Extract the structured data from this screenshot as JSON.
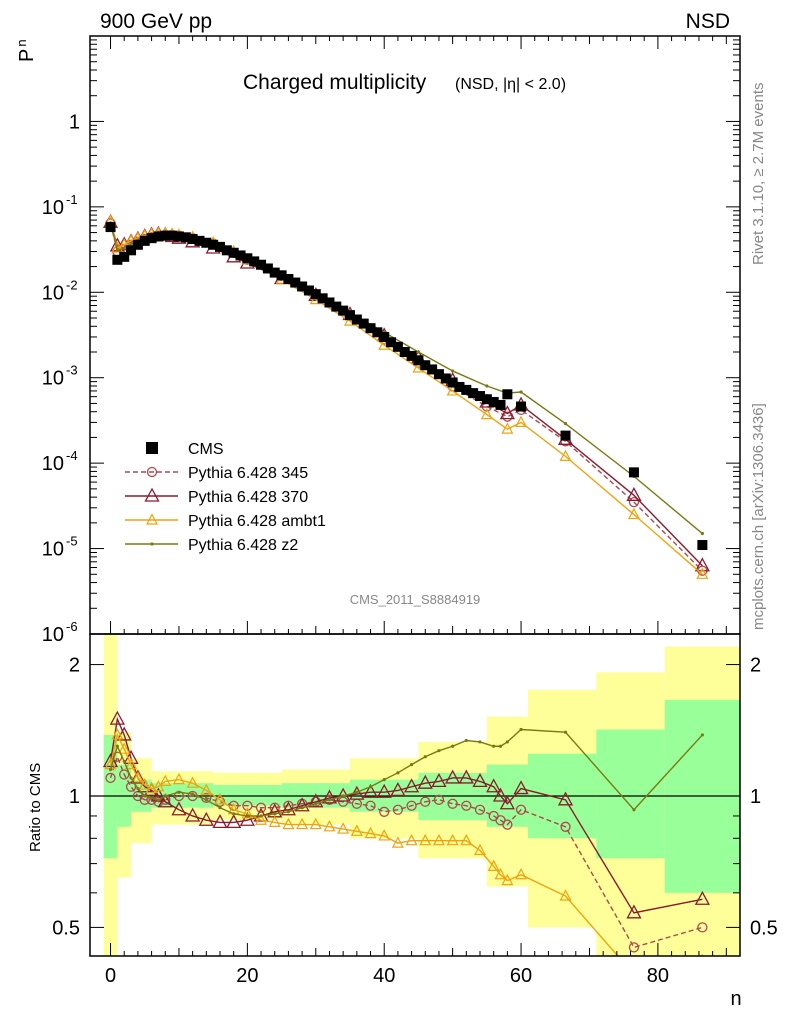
{
  "header": {
    "left": "900 GeV pp",
    "right": "NSD"
  },
  "title": {
    "main": "Charged multiplicity",
    "sub": "(NSD, |η| < 2.0)"
  },
  "side_text": {
    "top": "Rivet 3.1.10, ≥ 2.7M events",
    "bottom": "mcplots.cern.ch [arXiv:1306.3436]"
  },
  "analysis_label": "CMS_2011_S8884919",
  "axes": {
    "y_top_label": "P",
    "y_top_label_sub": "n",
    "y_bottom_label": "Ratio to CMS",
    "x_label": "n",
    "x_ticks": [
      "0",
      "20",
      "40",
      "60",
      "80"
    ],
    "y_top_ticks": [
      "10",
      "10",
      "10",
      "10",
      "10",
      "10",
      "1"
    ],
    "y_top_tick_exps": [
      "-6",
      "-5",
      "-4",
      "-3",
      "-2",
      "-1",
      ""
    ],
    "y_bottom_ticks": [
      "0.5",
      "1",
      "2"
    ]
  },
  "legend": [
    {
      "label": "CMS",
      "color": "#000000"
    },
    {
      "label": "Pythia 6.428 345",
      "color": "#b0474f"
    },
    {
      "label": "Pythia 6.428 370",
      "color": "#8b1a2e"
    },
    {
      "label": "Pythia 6.428 ambt1",
      "color": "#f0a30a"
    },
    {
      "label": "Pythia 6.428 z2",
      "color": "#7a7a12"
    }
  ],
  "chart_data": {
    "type": "scatter",
    "x_range": [
      -3,
      92
    ],
    "top_panel": {
      "yscale": "log",
      "ylim": [
        1e-06,
        10
      ]
    },
    "bottom_panel": {
      "yscale": "log",
      "ylim": [
        0.43,
        2.35
      ],
      "reference": 1
    },
    "data": {
      "name": "CMS",
      "x": [
        0,
        1,
        2,
        3,
        4,
        5,
        6,
        7,
        8,
        9,
        10,
        11,
        12,
        13,
        14,
        15,
        16,
        17,
        18,
        19,
        20,
        21,
        22,
        23,
        24,
        25,
        26,
        27,
        28,
        29,
        30,
        31,
        32,
        33,
        34,
        35,
        36,
        37,
        38,
        39,
        40,
        41,
        42,
        43,
        44,
        45,
        46,
        47,
        48,
        49,
        50,
        51,
        52,
        53,
        54,
        55,
        56,
        57,
        58,
        60,
        66.5,
        76.5,
        86.5
      ],
      "y": [
        0.058,
        0.024,
        0.026,
        0.031,
        0.036,
        0.04,
        0.043,
        0.045,
        0.046,
        0.046,
        0.045,
        0.044,
        0.042,
        0.04,
        0.038,
        0.036,
        0.034,
        0.031,
        0.029,
        0.027,
        0.025,
        0.023,
        0.021,
        0.019,
        0.017,
        0.0158,
        0.0143,
        0.013,
        0.0117,
        0.0105,
        0.0095,
        0.0085,
        0.0076,
        0.0068,
        0.0061,
        0.0054,
        0.0048,
        0.0043,
        0.0038,
        0.0034,
        0.003,
        0.0026,
        0.0023,
        0.002,
        0.0018,
        0.0016,
        0.0014,
        0.00125,
        0.0011,
        0.00098,
        0.00088,
        0.00078,
        0.00072,
        0.00066,
        0.00061,
        0.00056,
        0.00052,
        0.00048,
        0.00064,
        0.00046,
        0.00021,
        7.8e-05,
        1.1e-05
      ]
    },
    "series": [
      {
        "name": "Pythia 6.428 345",
        "marker": "open-circle",
        "line": "dashed",
        "x": [
          0,
          1,
          2,
          3,
          4,
          5,
          6,
          7,
          8,
          9,
          10,
          12,
          15,
          18,
          20,
          25,
          30,
          35,
          40,
          45,
          50,
          55,
          58,
          60,
          66.5,
          76.5,
          86.5
        ],
        "y": [
          0.064,
          0.03,
          0.032,
          0.036,
          0.039,
          0.042,
          0.044,
          0.046,
          0.047,
          0.047,
          0.046,
          0.043,
          0.037,
          0.029,
          0.024,
          0.0155,
          0.0093,
          0.0053,
          0.0028,
          0.0015,
          0.00079,
          0.00046,
          0.00035,
          0.00042,
          0.00018,
          3.5e-05,
          5.5e-06
        ]
      },
      {
        "name": "Pythia 6.428 370",
        "marker": "open-triangle",
        "line": "solid",
        "x": [
          0,
          1,
          2,
          3,
          4,
          5,
          6,
          7,
          8,
          9,
          10,
          12,
          15,
          18,
          20,
          25,
          30,
          35,
          40,
          45,
          50,
          55,
          58,
          60,
          66.5,
          76.5,
          86.5
        ],
        "y": [
          0.066,
          0.035,
          0.036,
          0.039,
          0.042,
          0.045,
          0.047,
          0.048,
          0.047,
          0.045,
          0.043,
          0.039,
          0.033,
          0.026,
          0.022,
          0.0145,
          0.0092,
          0.0055,
          0.0031,
          0.0017,
          0.00093,
          0.00052,
          0.00038,
          0.00048,
          0.00019,
          4.2e-05,
          6.3e-06
        ]
      },
      {
        "name": "Pythia 6.428 ambt1",
        "marker": "open-triangle-small",
        "line": "solid",
        "x": [
          0,
          1,
          2,
          3,
          4,
          5,
          6,
          7,
          8,
          9,
          10,
          12,
          15,
          18,
          20,
          25,
          30,
          35,
          40,
          45,
          50,
          55,
          58,
          60,
          66.5,
          76.5,
          86.5
        ],
        "y": [
          0.068,
          0.033,
          0.036,
          0.04,
          0.043,
          0.046,
          0.048,
          0.049,
          0.049,
          0.048,
          0.047,
          0.044,
          0.038,
          0.03,
          0.024,
          0.014,
          0.0082,
          0.0046,
          0.0024,
          0.0013,
          0.0007,
          0.00037,
          0.00025,
          0.0003,
          0.00012,
          2.5e-05,
          5e-06
        ]
      },
      {
        "name": "Pythia 6.428 z2",
        "marker": "dot",
        "line": "solid",
        "x": [
          0,
          1,
          2,
          3,
          4,
          5,
          6,
          7,
          8,
          9,
          10,
          12,
          15,
          18,
          20,
          25,
          30,
          35,
          40,
          45,
          50,
          55,
          58,
          60,
          66.5,
          76.5,
          86.5
        ],
        "y": [
          0.065,
          0.031,
          0.033,
          0.037,
          0.04,
          0.043,
          0.045,
          0.047,
          0.047,
          0.046,
          0.045,
          0.042,
          0.036,
          0.029,
          0.024,
          0.0155,
          0.0095,
          0.0058,
          0.0034,
          0.002,
          0.0012,
          0.0008,
          0.00066,
          0.00068,
          0.00029,
          7e-05,
          1.5e-05
        ]
      }
    ],
    "ratios": [
      {
        "name": "Pythia 6.428 345",
        "x": [
          0,
          1,
          2,
          3,
          4,
          5,
          6,
          7,
          8,
          10,
          12,
          14,
          16,
          18,
          20,
          22,
          24,
          26,
          28,
          30,
          32,
          34,
          36,
          38,
          40,
          42,
          44,
          46,
          48,
          50,
          52,
          54,
          56,
          57,
          58,
          60,
          66.5,
          76.5,
          86.5
        ],
        "y": [
          1.1,
          1.23,
          1.12,
          1.05,
          1.0,
          0.98,
          0.98,
          0.97,
          0.98,
          1.0,
          1.0,
          0.99,
          0.97,
          0.95,
          0.95,
          0.94,
          0.94,
          0.95,
          0.96,
          0.97,
          0.98,
          0.97,
          0.96,
          0.95,
          0.92,
          0.93,
          0.95,
          0.97,
          0.98,
          0.96,
          0.95,
          0.93,
          0.9,
          0.88,
          0.86,
          0.93,
          0.85,
          0.45,
          0.5
        ]
      },
      {
        "name": "Pythia 6.428 370",
        "x": [
          0,
          1,
          2,
          3,
          4,
          5,
          6,
          7,
          8,
          10,
          12,
          14,
          16,
          18,
          20,
          22,
          24,
          26,
          28,
          30,
          32,
          34,
          36,
          38,
          40,
          42,
          44,
          46,
          48,
          50,
          52,
          54,
          56,
          57,
          58,
          60,
          66.5,
          76.5,
          86.5
        ],
        "y": [
          1.2,
          1.5,
          1.38,
          1.22,
          1.1,
          1.05,
          1.03,
          1.0,
          0.97,
          0.93,
          0.9,
          0.88,
          0.87,
          0.87,
          0.88,
          0.9,
          0.92,
          0.93,
          0.95,
          0.97,
          0.99,
          1.0,
          1.01,
          1.02,
          1.02,
          1.03,
          1.05,
          1.07,
          1.08,
          1.1,
          1.1,
          1.08,
          1.05,
          1.0,
          0.96,
          1.04,
          0.98,
          0.54,
          0.58
        ]
      },
      {
        "name": "Pythia 6.428 ambt1",
        "x": [
          0,
          1,
          2,
          3,
          4,
          5,
          6,
          7,
          8,
          10,
          12,
          14,
          16,
          18,
          20,
          22,
          24,
          26,
          28,
          30,
          32,
          34,
          36,
          38,
          40,
          42,
          44,
          46,
          48,
          50,
          52,
          54,
          56,
          57,
          58,
          60,
          66.5,
          76.5,
          86.5
        ],
        "y": [
          1.18,
          1.38,
          1.28,
          1.18,
          1.1,
          1.06,
          1.04,
          1.05,
          1.08,
          1.09,
          1.07,
          1.03,
          0.98,
          0.93,
          0.91,
          0.88,
          0.87,
          0.86,
          0.86,
          0.86,
          0.85,
          0.84,
          0.83,
          0.82,
          0.81,
          0.78,
          0.79,
          0.79,
          0.79,
          0.79,
          0.79,
          0.75,
          0.69,
          0.66,
          0.64,
          0.66,
          0.59,
          0.39,
          0.42
        ]
      },
      {
        "name": "Pythia 6.428 z2",
        "x": [
          0,
          1,
          2,
          3,
          4,
          5,
          6,
          7,
          8,
          10,
          12,
          14,
          16,
          18,
          20,
          22,
          24,
          26,
          28,
          30,
          32,
          34,
          36,
          38,
          40,
          42,
          44,
          46,
          48,
          50,
          52,
          54,
          56,
          57,
          58,
          60,
          66.5,
          76.5,
          86.5
        ],
        "y": [
          1.15,
          1.3,
          1.2,
          1.1,
          1.04,
          1.0,
          0.99,
          0.98,
          1.0,
          1.02,
          1.01,
          0.98,
          0.94,
          0.91,
          0.9,
          0.9,
          0.91,
          0.92,
          0.94,
          0.96,
          0.98,
          1.0,
          1.02,
          1.05,
          1.09,
          1.13,
          1.18,
          1.23,
          1.27,
          1.3,
          1.34,
          1.33,
          1.3,
          1.3,
          1.33,
          1.42,
          1.4,
          0.93,
          1.38
        ]
      }
    ],
    "bands": {
      "inner": [
        [
          -1,
          1,
          0.72,
          1.38
        ],
        [
          1,
          3,
          0.85,
          1.18
        ],
        [
          3,
          6,
          0.92,
          1.09
        ],
        [
          6,
          15,
          0.94,
          1.07
        ],
        [
          15,
          25,
          0.95,
          1.06
        ],
        [
          25,
          35,
          0.94,
          1.07
        ],
        [
          35,
          45,
          0.92,
          1.09
        ],
        [
          45,
          55,
          0.88,
          1.13
        ],
        [
          55,
          61,
          0.85,
          1.18
        ],
        [
          61,
          71,
          0.8,
          1.25
        ],
        [
          71,
          81,
          0.72,
          1.42
        ],
        [
          81,
          92,
          0.6,
          1.66
        ]
      ],
      "outer": [
        [
          -1,
          1,
          0.43,
          2.35
        ],
        [
          1,
          3,
          0.65,
          1.4
        ],
        [
          3,
          6,
          0.78,
          1.22
        ],
        [
          6,
          15,
          0.86,
          1.14
        ],
        [
          15,
          25,
          0.88,
          1.13
        ],
        [
          25,
          35,
          0.86,
          1.15
        ],
        [
          35,
          45,
          0.8,
          1.22
        ],
        [
          45,
          55,
          0.72,
          1.33
        ],
        [
          55,
          61,
          0.62,
          1.52
        ],
        [
          61,
          71,
          0.5,
          1.75
        ],
        [
          71,
          81,
          0.43,
          1.92
        ],
        [
          81,
          92,
          0.43,
          2.2
        ]
      ]
    }
  }
}
